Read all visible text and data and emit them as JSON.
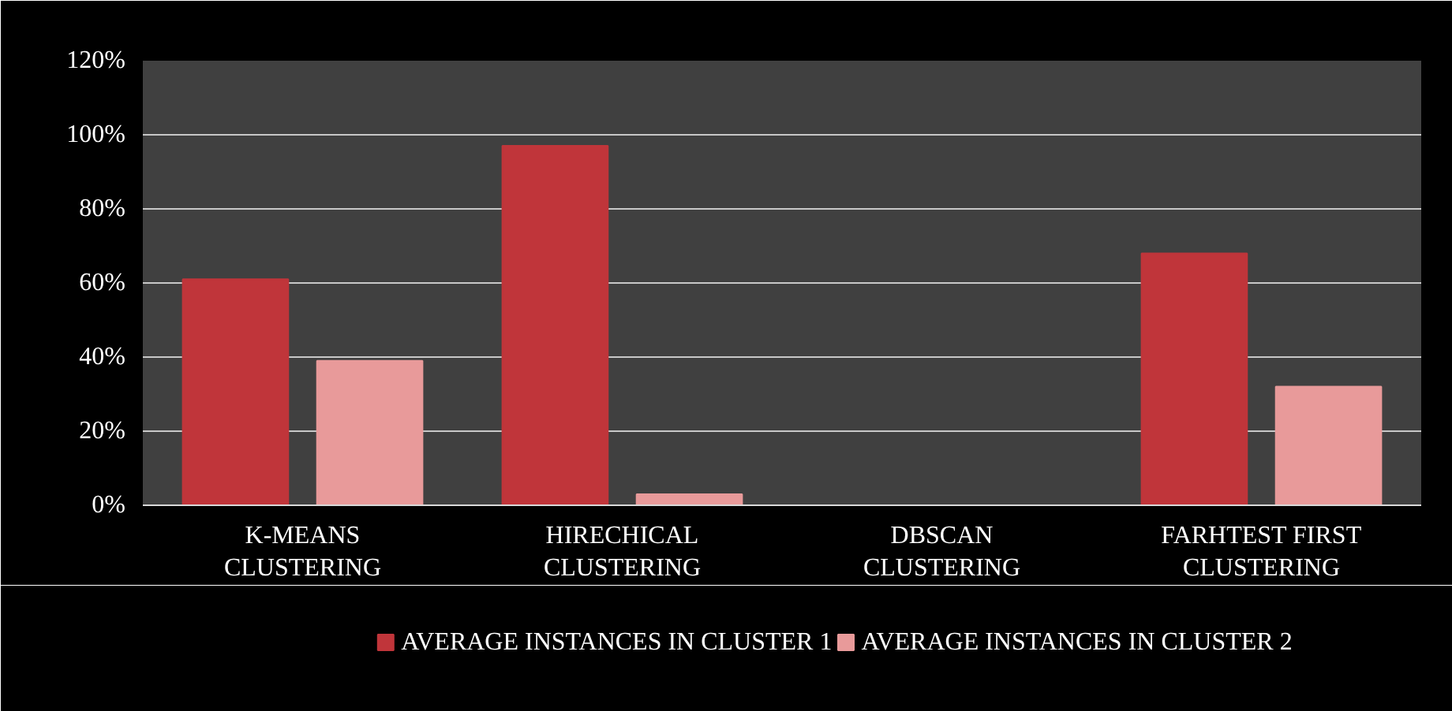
{
  "chart_data": {
    "type": "bar",
    "categories": [
      "K-MEANS CLUSTERING",
      "HIRECHICAL CLUSTERING",
      "DBSCAN CLUSTERING",
      "FARHTEST FIRST CLUSTERING"
    ],
    "series": [
      {
        "name": "AVERAGE INSTANCES IN CLUSTER 1",
        "color": "#c0353a",
        "values": [
          61,
          97,
          0,
          68
        ]
      },
      {
        "name": "AVERAGE INSTANCES IN CLUSTER 2",
        "color": "#e89a9a",
        "values": [
          39,
          3,
          0,
          32
        ]
      }
    ],
    "ylim": [
      0,
      120
    ],
    "yticks": [
      {
        "value": 0,
        "label": "0%"
      },
      {
        "value": 20,
        "label": "20%"
      },
      {
        "value": 40,
        "label": "40%"
      },
      {
        "value": 60,
        "label": "60%"
      },
      {
        "value": 80,
        "label": "80%"
      },
      {
        "value": 100,
        "label": "100%"
      },
      {
        "value": 120,
        "label": "120%"
      }
    ],
    "grid": "y",
    "legend": "bottom"
  }
}
